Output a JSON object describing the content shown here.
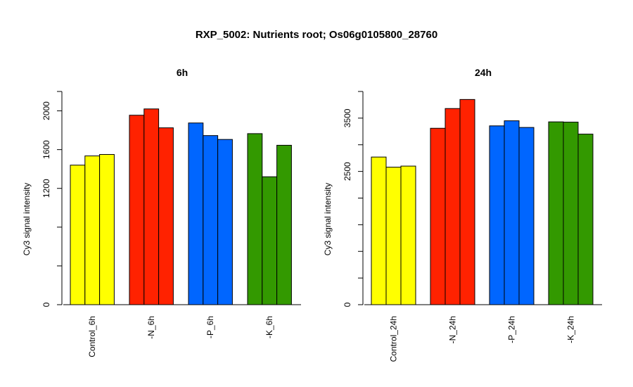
{
  "figure": {
    "title": "RXP_5002: Nutrients root; Os06g0105800_28760"
  },
  "chart_data": [
    {
      "type": "bar",
      "title": "6h",
      "xlabel": "",
      "ylabel": "Cy3 signal intensity",
      "ylim": [
        0,
        2200
      ],
      "yticks": [
        0,
        1200,
        1600,
        2000
      ],
      "categories": [
        "Control_6h",
        "-N_6h",
        "-P_6h",
        "-K_6h"
      ],
      "category_colors": [
        "#ffff00",
        "#ff2200",
        "#0066ff",
        "#339900"
      ],
      "values": [
        [
          1440,
          1535,
          1550
        ],
        [
          1955,
          2020,
          1825
        ],
        [
          1875,
          1745,
          1705
        ],
        [
          1765,
          1320,
          1645
        ]
      ],
      "grid": false,
      "legend": "none"
    },
    {
      "type": "bar",
      "title": "24h",
      "xlabel": "",
      "ylabel": "Cy3 signal intensity",
      "ylim": [
        0,
        4000
      ],
      "yticks": [
        0,
        2500,
        3500
      ],
      "categories": [
        "Control_24h",
        "-N_24h",
        "-P_24h",
        "-K_24h"
      ],
      "category_colors": [
        "#ffff00",
        "#ff2200",
        "#0066ff",
        "#339900"
      ],
      "values": [
        [
          2770,
          2580,
          2600
        ],
        [
          3310,
          3680,
          3850
        ],
        [
          3355,
          3450,
          3325
        ],
        [
          3430,
          3425,
          3200
        ]
      ],
      "grid": false,
      "legend": "none"
    }
  ]
}
